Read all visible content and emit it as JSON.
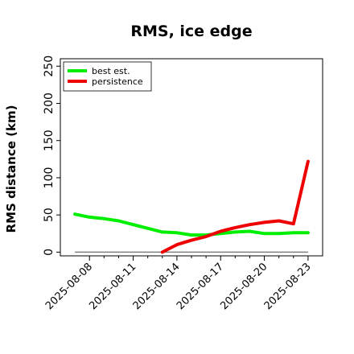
{
  "chart_data": {
    "type": "line",
    "title": "RMS, ice edge",
    "ylabel": "RMS distance (km)",
    "xlabel": "",
    "ylim": [
      -5,
      260
    ],
    "yticks": [
      0,
      50,
      100,
      150,
      200,
      250
    ],
    "xlim": [
      "2025-08-06",
      "2025-08-24"
    ],
    "xticks": [
      "2025-08-08",
      "2025-08-11",
      "2025-08-14",
      "2025-08-17",
      "2025-08-20",
      "2025-08-23"
    ],
    "grid": false,
    "legend_position": "top-left",
    "baseline": {
      "value": 0,
      "x_range": [
        "2025-08-07",
        "2025-08-23"
      ],
      "color": "#808080"
    },
    "series": [
      {
        "name": "best est.",
        "color": "#00ee00",
        "x": [
          "2025-08-07",
          "2025-08-08",
          "2025-08-09",
          "2025-08-10",
          "2025-08-11",
          "2025-08-12",
          "2025-08-13",
          "2025-08-14",
          "2025-08-15",
          "2025-08-16",
          "2025-08-17",
          "2025-08-18",
          "2025-08-19",
          "2025-08-20",
          "2025-08-21",
          "2025-08-22",
          "2025-08-23"
        ],
        "values": [
          51,
          47,
          45,
          42,
          37,
          32,
          27,
          26,
          23,
          23,
          25,
          27,
          28,
          25,
          25,
          26,
          26
        ]
      },
      {
        "name": "persistence",
        "color": "#ee0000",
        "x": [
          "2025-08-13",
          "2025-08-14",
          "2025-08-15",
          "2025-08-16",
          "2025-08-17",
          "2025-08-18",
          "2025-08-19",
          "2025-08-20",
          "2025-08-21",
          "2025-08-22",
          "2025-08-23"
        ],
        "values": [
          0,
          10,
          16,
          21,
          28,
          33,
          37,
          40,
          42,
          38,
          122
        ]
      }
    ]
  }
}
